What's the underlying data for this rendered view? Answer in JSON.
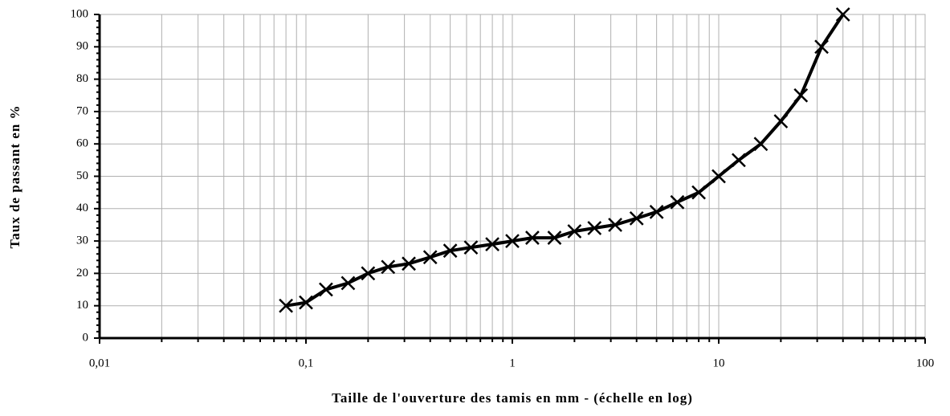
{
  "chart_data": {
    "type": "line",
    "x_label": "Taille de l'ouverture des tamis en mm - (échelle en log)",
    "y_label": "Taux de passant en %",
    "xscale": "log",
    "xlim": [
      0.01,
      100
    ],
    "xticks": [
      {
        "value": 0.01,
        "label": "0,01"
      },
      {
        "value": 0.1,
        "label": "0,1"
      },
      1,
      10,
      100
    ],
    "minor_xticks": [
      0.02,
      0.03,
      0.04,
      0.05,
      0.06,
      0.07,
      0.08,
      0.09,
      0.2,
      0.3,
      0.4,
      0.5,
      0.6,
      0.7,
      0.8,
      0.9,
      2,
      3,
      4,
      5,
      6,
      7,
      8,
      9,
      20,
      30,
      40,
      50,
      60,
      70,
      80,
      90
    ],
    "ylim": [
      0,
      100
    ],
    "yticks": [
      0,
      10,
      20,
      30,
      40,
      50,
      60,
      70,
      80,
      90,
      100
    ],
    "minor_yticks": [
      2,
      4,
      6,
      8,
      12,
      14,
      16,
      18,
      22,
      24,
      26,
      28,
      32,
      34,
      36,
      38,
      42,
      44,
      46,
      48,
      52,
      54,
      56,
      58,
      62,
      64,
      66,
      68,
      72,
      74,
      76,
      78,
      82,
      84,
      86,
      88,
      92,
      94,
      96,
      98
    ],
    "grid": true,
    "series": [
      {
        "color": "#000000",
        "marker": "x",
        "x": [
          0.08,
          0.1,
          0.125,
          0.16,
          0.2,
          0.25,
          0.315,
          0.4,
          0.5,
          0.63,
          0.8,
          1,
          1.25,
          1.6,
          2,
          2.5,
          3.15,
          4,
          5,
          6.3,
          8,
          10,
          12.5,
          16,
          20,
          25,
          31.5,
          40
        ],
        "values": [
          10,
          11,
          15,
          17,
          20,
          22,
          23,
          25,
          27,
          28,
          29,
          30,
          31,
          31,
          33,
          34,
          35,
          37,
          39,
          42,
          45,
          50,
          55,
          60,
          67,
          75,
          90,
          100
        ]
      }
    ]
  }
}
